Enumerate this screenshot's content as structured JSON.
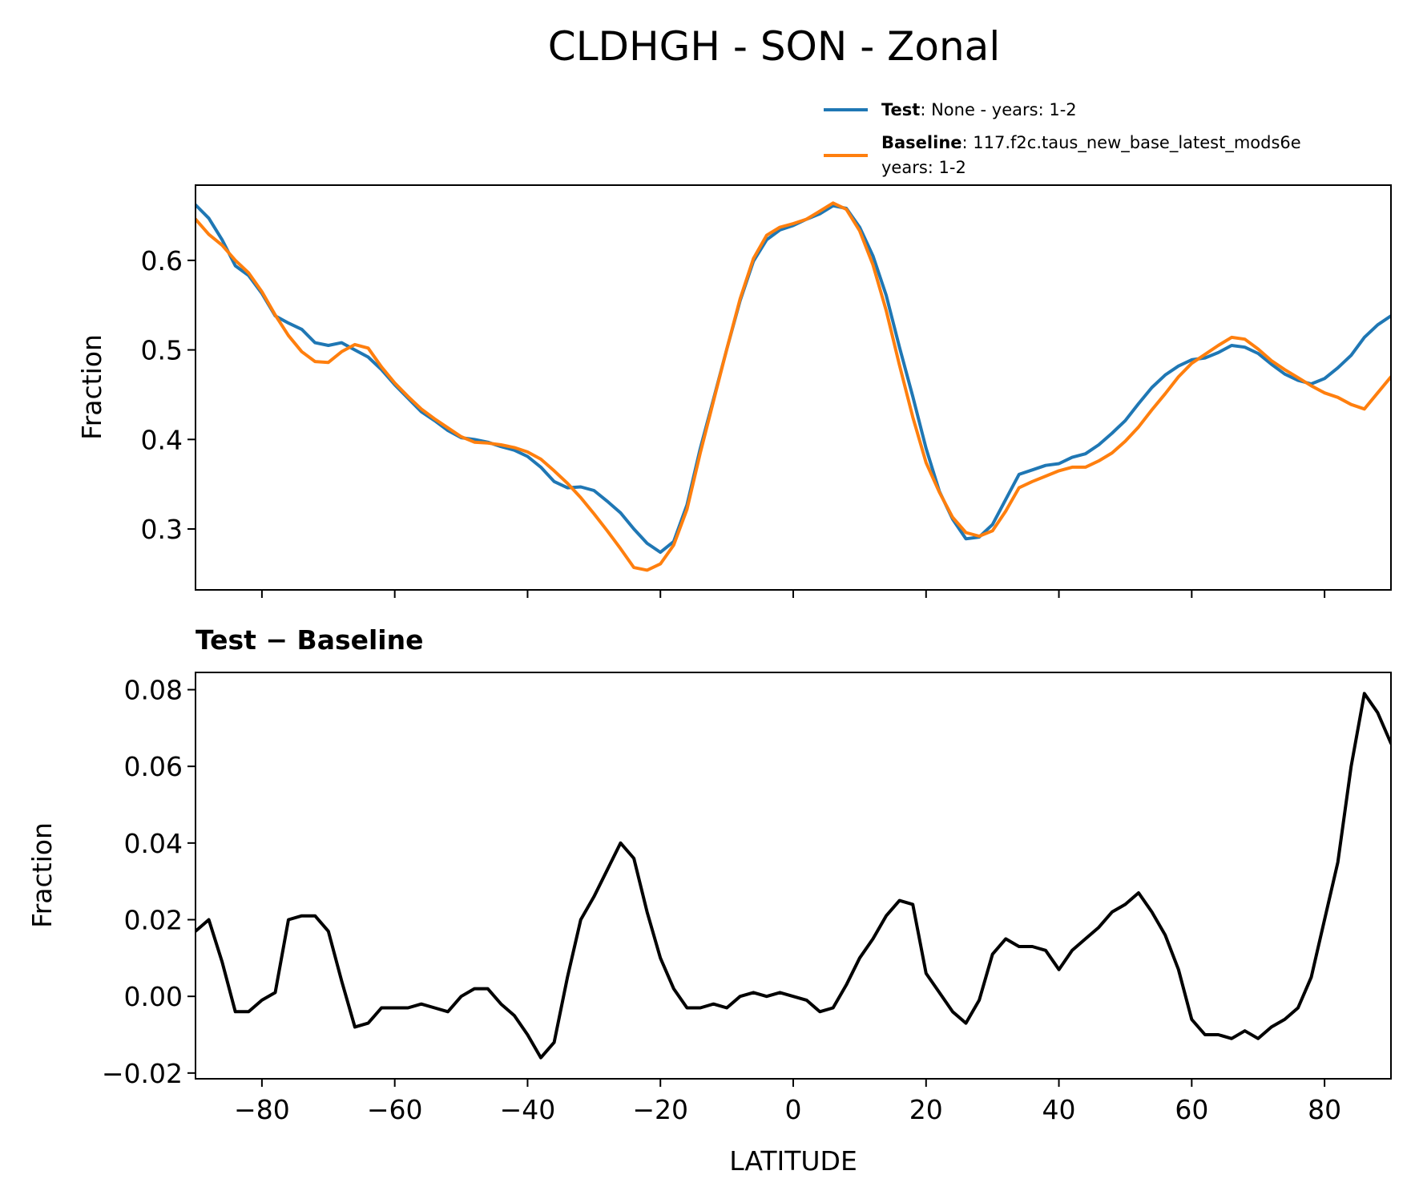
{
  "chart_data": [
    {
      "type": "line",
      "title": "CLDHGH - SON - Zonal",
      "xlabel": "",
      "ylabel": "Fraction",
      "xlim": [
        -90,
        90
      ],
      "ylim": [
        0.232,
        0.684
      ],
      "yticks": [
        "0.3",
        "0.4",
        "0.5",
        "0.6"
      ],
      "xticks": [
        -80,
        -60,
        -40,
        -20,
        0,
        20,
        40,
        60,
        80
      ],
      "legend_placement": "above-right",
      "legend": {
        "test_label_bold": "Test",
        "test_label_rest": ": None - years: 1-2",
        "baseline_label_bold": "Baseline",
        "baseline_label_rest": ": 117.f2c.taus_new_base_latest_mods6e",
        "baseline_label_line2": "years: 1-2"
      },
      "x": [
        -90,
        -88,
        -86,
        -84,
        -82,
        -80,
        -78,
        -76,
        -74,
        -72,
        -70,
        -68,
        -66,
        -64,
        -62,
        -60,
        -58,
        -56,
        -54,
        -52,
        -50,
        -48,
        -46,
        -44,
        -42,
        -40,
        -38,
        -36,
        -34,
        -32,
        -30,
        -28,
        -26,
        -24,
        -22,
        -20,
        -18,
        -16,
        -14,
        -12,
        -10,
        -8,
        -6,
        -4,
        -2,
        0,
        2,
        4,
        6,
        8,
        10,
        12,
        14,
        16,
        18,
        20,
        22,
        24,
        26,
        28,
        30,
        32,
        34,
        36,
        38,
        40,
        42,
        44,
        46,
        48,
        50,
        52,
        54,
        56,
        58,
        60,
        62,
        64,
        66,
        68,
        70,
        72,
        74,
        76,
        78,
        80,
        82,
        84,
        86,
        88,
        90
      ],
      "series": [
        {
          "name": "Test",
          "color": "#1f77b4",
          "values": [
            0.662,
            0.647,
            0.623,
            0.594,
            0.583,
            0.563,
            0.538,
            0.53,
            0.523,
            0.508,
            0.505,
            0.508,
            0.5,
            0.492,
            0.478,
            0.461,
            0.446,
            0.431,
            0.421,
            0.41,
            0.402,
            0.4,
            0.397,
            0.392,
            0.388,
            0.381,
            0.369,
            0.353,
            0.346,
            0.347,
            0.343,
            0.331,
            0.318,
            0.3,
            0.284,
            0.274,
            0.286,
            0.327,
            0.39,
            0.445,
            0.501,
            0.555,
            0.599,
            0.623,
            0.634,
            0.639,
            0.646,
            0.652,
            0.661,
            0.658,
            0.637,
            0.605,
            0.561,
            0.503,
            0.448,
            0.39,
            0.342,
            0.311,
            0.289,
            0.291,
            0.305,
            0.333,
            0.361,
            0.366,
            0.371,
            0.373,
            0.38,
            0.384,
            0.394,
            0.407,
            0.421,
            0.44,
            0.458,
            0.472,
            0.482,
            0.489,
            0.491,
            0.497,
            0.505,
            0.503,
            0.496,
            0.484,
            0.473,
            0.466,
            0.462,
            0.468,
            0.48,
            0.494,
            0.514,
            0.528,
            0.538
          ]
        },
        {
          "name": "Baseline",
          "color": "#ff7f0e",
          "values": [
            0.646,
            0.629,
            0.617,
            0.6,
            0.586,
            0.565,
            0.539,
            0.516,
            0.498,
            0.487,
            0.486,
            0.498,
            0.506,
            0.502,
            0.481,
            0.463,
            0.448,
            0.434,
            0.423,
            0.413,
            0.403,
            0.397,
            0.396,
            0.394,
            0.391,
            0.386,
            0.378,
            0.365,
            0.351,
            0.335,
            0.317,
            0.298,
            0.278,
            0.257,
            0.254,
            0.261,
            0.282,
            0.322,
            0.385,
            0.443,
            0.501,
            0.557,
            0.602,
            0.628,
            0.637,
            0.641,
            0.646,
            0.655,
            0.664,
            0.657,
            0.633,
            0.595,
            0.544,
            0.483,
            0.425,
            0.374,
            0.341,
            0.313,
            0.296,
            0.292,
            0.298,
            0.32,
            0.346,
            0.353,
            0.359,
            0.365,
            0.369,
            0.369,
            0.376,
            0.385,
            0.398,
            0.414,
            0.433,
            0.451,
            0.47,
            0.485,
            0.495,
            0.505,
            0.514,
            0.512,
            0.501,
            0.488,
            0.478,
            0.469,
            0.46,
            0.452,
            0.447,
            0.439,
            0.434,
            0.452,
            0.47
          ]
        }
      ]
    },
    {
      "type": "line",
      "title": "Test − Baseline",
      "xlabel": "LATITUDE",
      "ylabel": "Fraction",
      "xlim": [
        -90,
        90
      ],
      "ylim": [
        -0.0215,
        0.0845
      ],
      "yticks": [
        "−0.02",
        "0.00",
        "0.02",
        "0.04",
        "0.06",
        "0.08"
      ],
      "xticks": [
        "−80",
        "−60",
        "−40",
        "−20",
        "0",
        "20",
        "40",
        "60",
        "80"
      ],
      "x": [
        -90,
        -88,
        -86,
        -84,
        -82,
        -80,
        -78,
        -76,
        -74,
        -72,
        -70,
        -68,
        -66,
        -64,
        -62,
        -60,
        -58,
        -56,
        -54,
        -52,
        -50,
        -48,
        -46,
        -44,
        -42,
        -40,
        -38,
        -36,
        -34,
        -32,
        -30,
        -28,
        -26,
        -24,
        -22,
        -20,
        -18,
        -16,
        -14,
        -12,
        -10,
        -8,
        -6,
        -4,
        -2,
        0,
        2,
        4,
        6,
        8,
        10,
        12,
        14,
        16,
        18,
        20,
        22,
        24,
        26,
        28,
        30,
        32,
        34,
        36,
        38,
        40,
        42,
        44,
        46,
        48,
        50,
        52,
        54,
        56,
        58,
        60,
        62,
        64,
        66,
        68,
        70,
        72,
        74,
        76,
        78,
        80,
        82,
        84,
        86,
        88,
        90
      ],
      "series": [
        {
          "name": "Test − Baseline",
          "color": "#000000",
          "values": [
            0.017,
            0.02,
            0.009,
            -0.004,
            -0.004,
            -0.001,
            0.001,
            0.02,
            0.021,
            0.021,
            0.017,
            0.004,
            -0.008,
            -0.007,
            -0.003,
            -0.003,
            -0.003,
            -0.002,
            -0.003,
            -0.004,
            0.0,
            0.002,
            0.002,
            -0.002,
            -0.005,
            -0.01,
            -0.016,
            -0.012,
            0.005,
            0.02,
            0.026,
            0.033,
            0.04,
            0.036,
            0.022,
            0.01,
            0.002,
            -0.003,
            -0.003,
            -0.002,
            -0.003,
            0.0,
            0.001,
            0.0,
            0.001,
            0.0,
            -0.001,
            -0.004,
            -0.003,
            0.003,
            0.01,
            0.015,
            0.021,
            0.025,
            0.024,
            0.006,
            0.001,
            -0.004,
            -0.007,
            -0.001,
            0.011,
            0.015,
            0.013,
            0.013,
            0.012,
            0.007,
            0.012,
            0.015,
            0.018,
            0.022,
            0.024,
            0.027,
            0.022,
            0.016,
            0.007,
            -0.006,
            -0.01,
            -0.01,
            -0.011,
            -0.009,
            -0.011,
            -0.008,
            -0.006,
            -0.003,
            0.005,
            0.02,
            0.035,
            0.06,
            0.079,
            0.074,
            0.066
          ]
        }
      ]
    }
  ]
}
